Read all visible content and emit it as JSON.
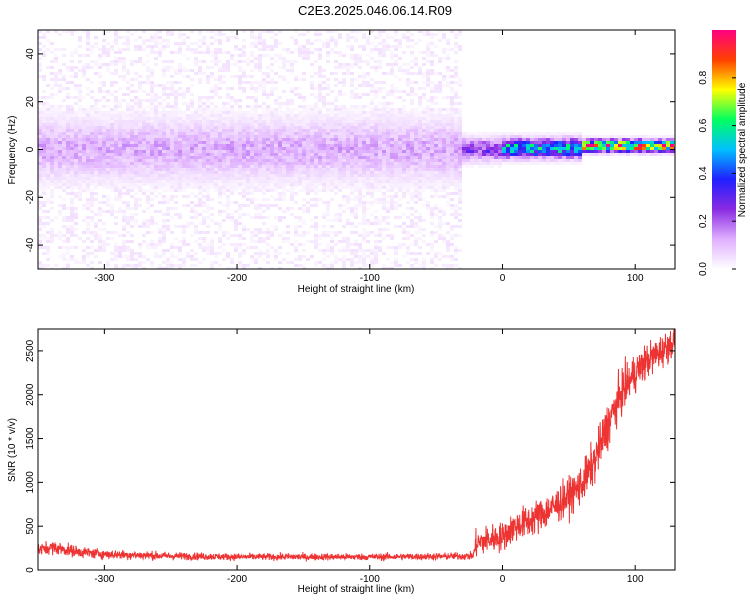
{
  "figure": {
    "title": "C2E3.2025.046.06.14.R09"
  },
  "chart_data": [
    {
      "type": "heatmap",
      "xlabel": "Height of straight line (km)",
      "ylabel": "Frequency (Hz)",
      "xlim": [
        -350,
        130
      ],
      "ylim": [
        -50,
        50
      ],
      "x_ticks": [
        -300,
        -200,
        -100,
        0,
        100
      ],
      "x_tick_labels": [
        "-300",
        "-200",
        "-100",
        "0",
        "100"
      ],
      "y_ticks": [
        -40,
        -20,
        0,
        20,
        40
      ],
      "y_tick_labels": [
        "-40",
        "-20",
        "0",
        "20",
        "40"
      ],
      "grid": false,
      "colorbar": {
        "label": "Normalized spectral amplitude",
        "range": [
          0,
          1
        ],
        "ticks": [
          0,
          0.2,
          0.4,
          0.6,
          0.8
        ],
        "tick_labels": [
          "0.0",
          "0.2",
          "0.4",
          "0.6",
          "0.8"
        ],
        "colormap": [
          "#ffffff",
          "#e0b0ff",
          "#8a2be2",
          "#2020ff",
          "#00c0ff",
          "#00ff60",
          "#ffff00",
          "#ff4000",
          "#ff0080"
        ]
      },
      "regions": [
        {
          "x_range": [
            -350,
            -30
          ],
          "freq_core": [
            -8,
            8
          ],
          "core_amplitude": 0.12,
          "background_amplitude": 0.03
        },
        {
          "x_range": [
            -30,
            0
          ],
          "freq_core": [
            -3,
            3
          ],
          "core_amplitude": 0.25,
          "background_amplitude": 0.0
        },
        {
          "x_range": [
            0,
            60
          ],
          "freq_core": [
            -2,
            3
          ],
          "core_amplitude": 0.5,
          "background_amplitude": 0.0
        },
        {
          "x_range": [
            60,
            130
          ],
          "freq_core": [
            0,
            3
          ],
          "core_amplitude": 0.85,
          "background_amplitude": 0.0
        }
      ]
    },
    {
      "type": "line",
      "xlabel": "Height of straight line (km)",
      "ylabel": "SNR (10 * v/v)",
      "xlim": [
        -350,
        130
      ],
      "ylim": [
        0,
        2750
      ],
      "x_ticks": [
        -300,
        -200,
        -100,
        0,
        100
      ],
      "x_tick_labels": [
        "-300",
        "-200",
        "-100",
        "0",
        "100"
      ],
      "y_ticks": [
        0,
        500,
        1000,
        1500,
        2000,
        2500
      ],
      "y_tick_labels": [
        "0",
        "500",
        "1000",
        "1500",
        "2000",
        "2500"
      ],
      "grid": false,
      "series": [
        {
          "color": "#ee3333",
          "x": [
            -350,
            -340,
            -320,
            -300,
            -250,
            -200,
            -150,
            -100,
            -50,
            -22,
            -20,
            -10,
            0,
            10,
            20,
            30,
            40,
            50,
            60,
            70,
            80,
            90,
            100,
            110,
            120,
            130
          ],
          "y": [
            230,
            260,
            210,
            180,
            160,
            150,
            150,
            150,
            155,
            160,
            300,
            350,
            380,
            500,
            560,
            640,
            730,
            840,
            980,
            1260,
            1680,
            2030,
            2250,
            2400,
            2500,
            2620
          ],
          "noise_amplitude": [
            60,
            70,
            60,
            50,
            40,
            35,
            35,
            35,
            35,
            40,
            140,
            150,
            150,
            160,
            170,
            180,
            180,
            190,
            200,
            230,
            240,
            220,
            200,
            180,
            170,
            160
          ]
        }
      ]
    }
  ]
}
